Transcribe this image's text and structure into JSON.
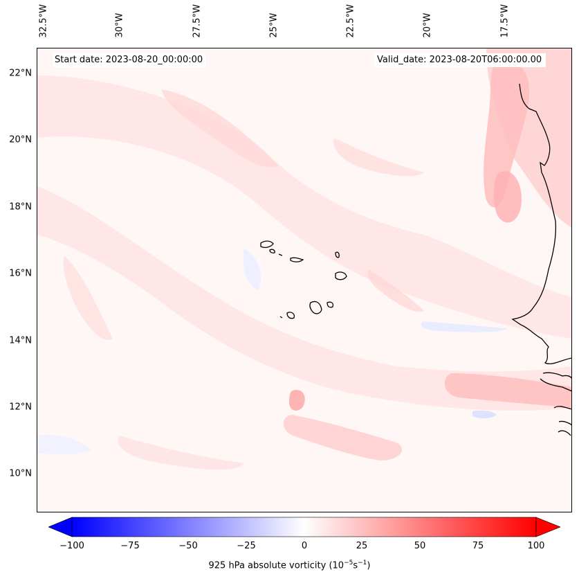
{
  "map": {
    "start_date_label": "Start date: 2023-08-20_00:00:00",
    "valid_date_label": "Valid_date: 2023-08-20T06:00:00.00",
    "lat_labels": [
      "22°N",
      "20°N",
      "18°N",
      "16°N",
      "14°N",
      "12°N",
      "10°N"
    ],
    "lon_labels": [
      "32.5°W",
      "30°W",
      "27.5°W",
      "25°W",
      "22.5°W",
      "20°W",
      "17.5°W"
    ],
    "gridlines": "dashed",
    "field_colors": {
      "weak_positive": "#ffe4e4",
      "moderate_positive": "#ffcfcf",
      "strong_positive": "#ffb0b0",
      "weak_negative": "#eef0ff",
      "background": "#fff8f8"
    }
  },
  "colorbar": {
    "min": -100,
    "max": 100,
    "tick_labels": [
      "−100",
      "−75",
      "−50",
      "−25",
      "0",
      "25",
      "50",
      "75",
      "100"
    ],
    "title_prefix": "925 hPa absolute vorticity (10",
    "title_exp1": "−5",
    "title_mid": "s",
    "title_exp2": "−1",
    "title_suffix": ")",
    "colormap": "bwr",
    "low_color": "#0000ff",
    "mid_color": "#ffffff",
    "high_color": "#ff0000"
  }
}
